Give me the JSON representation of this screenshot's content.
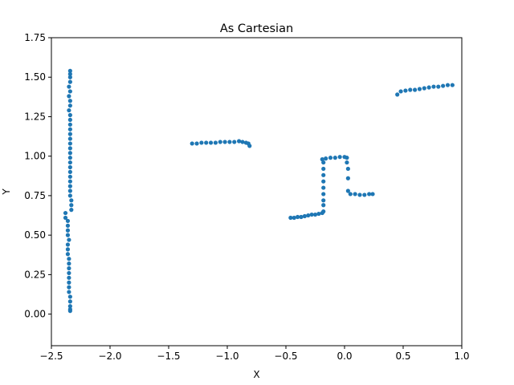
{
  "chart_data": {
    "type": "scatter",
    "title": "As Cartesian",
    "xlabel": "X",
    "ylabel": "Y",
    "xlim": [
      -2.5,
      1.0
    ],
    "ylim": [
      -0.2,
      1.75
    ],
    "xticks": [
      -2.5,
      -2.0,
      -1.5,
      -1.0,
      -0.5,
      0.0,
      0.5,
      1.0
    ],
    "xtick_labels": [
      "−2.5",
      "−2.0",
      "−1.5",
      "−1.0",
      "−0.5",
      "0.0",
      "0.5",
      "1.0"
    ],
    "yticks": [
      0.0,
      0.25,
      0.5,
      0.75,
      1.0,
      1.25,
      1.5,
      1.75
    ],
    "ytick_labels": [
      "0.00",
      "0.25",
      "0.50",
      "0.75",
      "1.00",
      "1.25",
      "1.50",
      "1.75"
    ],
    "grid": false,
    "marker_color": "#1f77b4",
    "series": [
      {
        "points": [
          [
            -2.34,
            1.54
          ],
          [
            -2.34,
            1.52
          ],
          [
            -2.34,
            1.5
          ],
          [
            -2.34,
            1.47
          ],
          [
            -2.35,
            1.44
          ],
          [
            -2.34,
            1.41
          ],
          [
            -2.35,
            1.38
          ],
          [
            -2.34,
            1.35
          ],
          [
            -2.34,
            1.32
          ],
          [
            -2.35,
            1.29
          ],
          [
            -2.34,
            1.26
          ],
          [
            -2.34,
            1.23
          ],
          [
            -2.34,
            1.2
          ],
          [
            -2.34,
            1.17
          ],
          [
            -2.34,
            1.14
          ],
          [
            -2.34,
            1.11
          ],
          [
            -2.34,
            1.08
          ],
          [
            -2.34,
            1.05
          ],
          [
            -2.34,
            1.02
          ],
          [
            -2.34,
            0.99
          ],
          [
            -2.34,
            0.96
          ],
          [
            -2.34,
            0.93
          ],
          [
            -2.34,
            0.9
          ],
          [
            -2.34,
            0.87
          ],
          [
            -2.34,
            0.84
          ],
          [
            -2.34,
            0.81
          ],
          [
            -2.34,
            0.78
          ],
          [
            -2.34,
            0.75
          ],
          [
            -2.33,
            0.72
          ],
          [
            -2.33,
            0.69
          ],
          [
            -2.33,
            0.66
          ],
          [
            -2.38,
            0.64
          ],
          [
            -2.38,
            0.61
          ],
          [
            -2.36,
            0.59
          ],
          [
            -2.36,
            0.56
          ],
          [
            -2.36,
            0.53
          ],
          [
            -2.36,
            0.5
          ],
          [
            -2.35,
            0.47
          ],
          [
            -2.36,
            0.44
          ],
          [
            -2.36,
            0.41
          ],
          [
            -2.36,
            0.38
          ],
          [
            -2.35,
            0.35
          ],
          [
            -2.35,
            0.32
          ],
          [
            -2.35,
            0.29
          ],
          [
            -2.35,
            0.26
          ],
          [
            -2.35,
            0.23
          ],
          [
            -2.35,
            0.2
          ],
          [
            -2.35,
            0.17
          ],
          [
            -2.35,
            0.14
          ],
          [
            -2.34,
            0.11
          ],
          [
            -2.34,
            0.08
          ],
          [
            -2.34,
            0.05
          ],
          [
            -2.34,
            0.03
          ],
          [
            -2.34,
            0.02
          ],
          [
            -1.3,
            1.08
          ],
          [
            -1.26,
            1.08
          ],
          [
            -1.22,
            1.085
          ],
          [
            -1.18,
            1.085
          ],
          [
            -1.14,
            1.085
          ],
          [
            -1.1,
            1.085
          ],
          [
            -1.06,
            1.09
          ],
          [
            -1.02,
            1.09
          ],
          [
            -0.98,
            1.09
          ],
          [
            -0.94,
            1.09
          ],
          [
            -0.9,
            1.095
          ],
          [
            -0.87,
            1.09
          ],
          [
            -0.84,
            1.085
          ],
          [
            -0.82,
            1.08
          ],
          [
            -0.81,
            1.065
          ],
          [
            -0.46,
            0.61
          ],
          [
            -0.43,
            0.61
          ],
          [
            -0.4,
            0.615
          ],
          [
            -0.37,
            0.615
          ],
          [
            -0.34,
            0.62
          ],
          [
            -0.31,
            0.625
          ],
          [
            -0.28,
            0.63
          ],
          [
            -0.25,
            0.63
          ],
          [
            -0.22,
            0.635
          ],
          [
            -0.19,
            0.64
          ],
          [
            -0.18,
            0.65
          ],
          [
            -0.18,
            0.69
          ],
          [
            -0.18,
            0.72
          ],
          [
            -0.18,
            0.76
          ],
          [
            -0.18,
            0.8
          ],
          [
            -0.18,
            0.84
          ],
          [
            -0.18,
            0.88
          ],
          [
            -0.18,
            0.92
          ],
          [
            -0.18,
            0.96
          ],
          [
            -0.19,
            0.98
          ],
          [
            -0.16,
            0.985
          ],
          [
            -0.12,
            0.99
          ],
          [
            -0.08,
            0.99
          ],
          [
            -0.04,
            0.995
          ],
          [
            0.0,
            0.995
          ],
          [
            0.02,
            0.99
          ],
          [
            0.02,
            0.96
          ],
          [
            0.03,
            0.92
          ],
          [
            0.03,
            0.86
          ],
          [
            0.03,
            0.78
          ],
          [
            0.05,
            0.76
          ],
          [
            0.09,
            0.76
          ],
          [
            0.13,
            0.755
          ],
          [
            0.17,
            0.755
          ],
          [
            0.21,
            0.76
          ],
          [
            0.24,
            0.76
          ],
          [
            0.45,
            1.39
          ],
          [
            0.48,
            1.41
          ],
          [
            0.52,
            1.415
          ],
          [
            0.56,
            1.42
          ],
          [
            0.6,
            1.42
          ],
          [
            0.64,
            1.425
          ],
          [
            0.68,
            1.43
          ],
          [
            0.72,
            1.435
          ],
          [
            0.76,
            1.44
          ],
          [
            0.8,
            1.44
          ],
          [
            0.84,
            1.445
          ],
          [
            0.88,
            1.45
          ],
          [
            0.92,
            1.45
          ]
        ]
      }
    ]
  }
}
